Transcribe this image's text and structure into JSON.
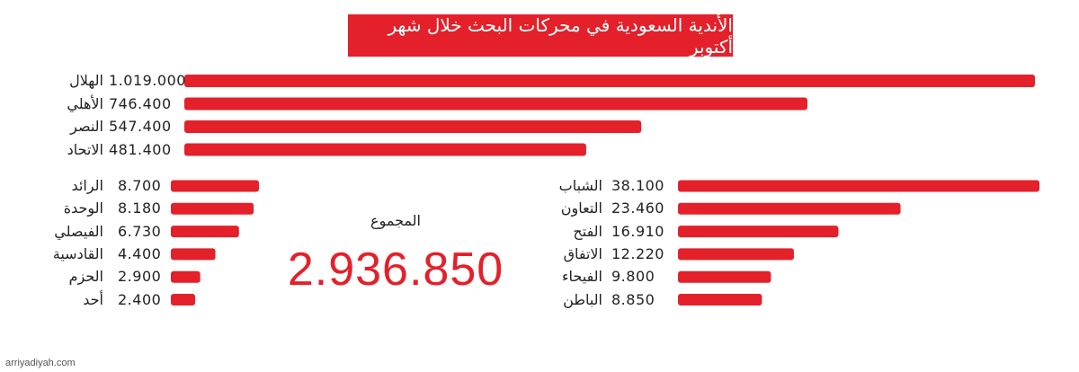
{
  "title": "الأندية السعودية في محركات البحث خلال شهر أكتوبر",
  "total": {
    "label": "المجموع",
    "value": "2.936.850"
  },
  "credit": "arriyadiyah.com",
  "colors": {
    "bar": "#e4202a",
    "text": "#222222"
  },
  "chart_data": [
    {
      "type": "bar",
      "orientation": "horizontal",
      "categories": [
        "الهلال",
        "الأهلي",
        "النصر",
        "الاتحاد"
      ],
      "values": [
        1019000,
        746400,
        547400,
        481400
      ],
      "labels": [
        "1.019.000",
        "746.400",
        "547.400",
        "481.400"
      ]
    },
    {
      "type": "bar",
      "orientation": "horizontal",
      "categories": [
        "الرائد",
        "الوحدة",
        "الفيصلي",
        "القادسية",
        "الحزم",
        "أحد"
      ],
      "values": [
        8700,
        8180,
        6730,
        4400,
        2900,
        2400
      ],
      "labels": [
        "8.700",
        "8.180",
        "6.730",
        "4.400",
        "2.900",
        "2.400"
      ]
    },
    {
      "type": "bar",
      "orientation": "horizontal",
      "categories": [
        "الشباب",
        "التعاون",
        "الفتح",
        "الاتفاق",
        "الفيحاء",
        "الباطن"
      ],
      "values": [
        38100,
        23460,
        16910,
        12220,
        9800,
        8850
      ],
      "labels": [
        "38.100",
        "23.460",
        "16.910",
        "12.220",
        "9.800",
        "8.850"
      ]
    }
  ]
}
